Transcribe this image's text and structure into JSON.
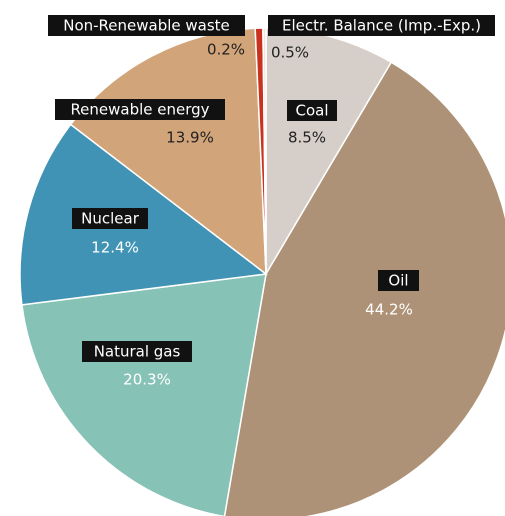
{
  "chart_data": {
    "type": "pie",
    "categories": [
      "Coal",
      "Oil",
      "Natural gas",
      "Nuclear",
      "Renewable energy",
      "Electr. Balance (Imp.-Exp.)",
      "Non-Renewable waste"
    ],
    "values": [
      8.5,
      44.2,
      20.3,
      12.4,
      13.9,
      0.5,
      0.2
    ],
    "value_labels": [
      "8.5%",
      "44.2%",
      "20.3%",
      "12.4%",
      "13.9%",
      "0.5%",
      "0.2%"
    ],
    "colors": [
      "#d6cfc9",
      "#ae9277",
      "#86c2b5",
      "#4193b5",
      "#d2a479",
      "#c8321e",
      "#efe5da"
    ]
  }
}
